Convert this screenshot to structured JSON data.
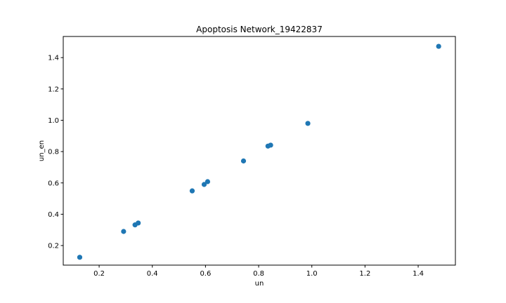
{
  "chart_data": {
    "type": "scatter",
    "title": "Apoptosis Network_19422837",
    "xlabel": "un",
    "ylabel": "un_en",
    "xlim": [
      0.065,
      1.54
    ],
    "ylim": [
      0.075,
      1.535
    ],
    "xticks": [
      0.2,
      0.4,
      0.6,
      0.8,
      1.0,
      1.2,
      1.4
    ],
    "yticks": [
      0.2,
      0.4,
      0.6,
      0.8,
      1.0,
      1.2,
      1.4
    ],
    "x_tick_labels": [
      "0.2",
      "0.4",
      "0.6",
      "0.8",
      "1.0",
      "1.2",
      "1.4"
    ],
    "y_tick_labels": [
      "0.2",
      "0.4",
      "0.6",
      "0.8",
      "1.0",
      "1.2",
      "1.4"
    ],
    "grid": false,
    "marker_color": "#1f77b4",
    "points": [
      {
        "x": 0.127,
        "y": 0.125
      },
      {
        "x": 0.292,
        "y": 0.29
      },
      {
        "x": 0.335,
        "y": 0.332
      },
      {
        "x": 0.347,
        "y": 0.344
      },
      {
        "x": 0.55,
        "y": 0.549
      },
      {
        "x": 0.595,
        "y": 0.59
      },
      {
        "x": 0.608,
        "y": 0.608
      },
      {
        "x": 0.743,
        "y": 0.74
      },
      {
        "x": 0.835,
        "y": 0.835
      },
      {
        "x": 0.845,
        "y": 0.841
      },
      {
        "x": 0.985,
        "y": 0.98
      },
      {
        "x": 1.477,
        "y": 1.472
      }
    ]
  }
}
